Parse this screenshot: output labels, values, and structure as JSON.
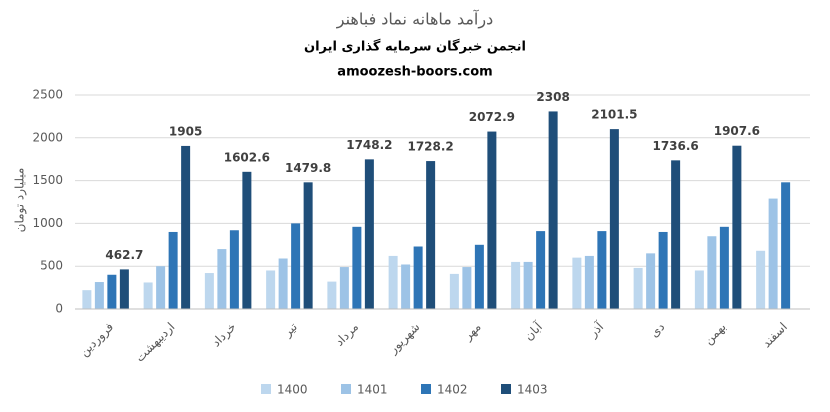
{
  "chart_data": {
    "type": "bar",
    "title": "درآمد ماهانه نماد فباهنر",
    "subtitle": "انجمن خبرگان سرمایه گذاری ایران",
    "source": "amoozesh-boors.com",
    "y_label": "میلیارد تومان",
    "categories": [
      "فروردین",
      "اردیبهشت",
      "خرداد",
      "تیر",
      "مرداد",
      "شهریور",
      "مهر",
      "آبان",
      "آذر",
      "دی",
      "بهمن",
      "اسفند"
    ],
    "series": [
      {
        "name": "1400",
        "color": "#bdd7ee",
        "show_labels": false,
        "values": [
          220,
          310,
          420,
          450,
          320,
          620,
          410,
          550,
          600,
          480,
          450,
          680
        ]
      },
      {
        "name": "1401",
        "color": "#9dc3e6",
        "show_labels": false,
        "values": [
          315,
          500,
          700,
          590,
          490,
          520,
          490,
          550,
          620,
          650,
          850,
          1290
        ]
      },
      {
        "name": "1402",
        "color": "#2e75b6",
        "show_labels": false,
        "values": [
          400,
          900,
          920,
          1000,
          960,
          730,
          750,
          910,
          910,
          900,
          960,
          1480
        ]
      },
      {
        "name": "1403",
        "color": "#1f4e79",
        "show_labels": true,
        "values": [
          462.7,
          1905,
          1602.6,
          1479.8,
          1748.2,
          1728.2,
          2072.9,
          2308,
          2101.5,
          1736.6,
          1907.6,
          null
        ]
      }
    ],
    "ylim": [
      0,
      2500
    ],
    "yticks": [
      0,
      500,
      1000,
      1500,
      2000,
      2500
    ],
    "grid": true,
    "legend": "bottom"
  }
}
